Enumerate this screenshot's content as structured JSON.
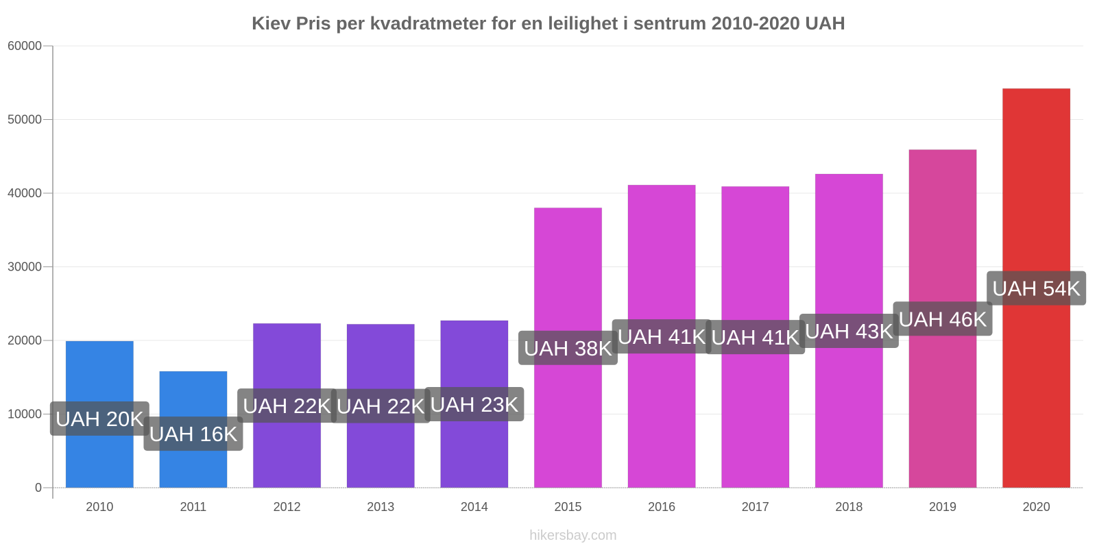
{
  "chart_data": {
    "type": "bar",
    "title": "Kiev Pris per kvadratmeter for en leilighet i sentrum 2010-2020 UAH",
    "xlabel": "",
    "ylabel": "",
    "ylim": [
      0,
      60000
    ],
    "yticks": [
      "0",
      "10000",
      "20000",
      "30000",
      "40000",
      "50000",
      "60000"
    ],
    "grid": true,
    "categories": [
      "2010",
      "2011",
      "2012",
      "2013",
      "2014",
      "2015",
      "2016",
      "2017",
      "2018",
      "2019",
      "2020"
    ],
    "values": [
      19900,
      15800,
      22300,
      22200,
      22700,
      38000,
      41100,
      40900,
      42600,
      45900,
      54200
    ],
    "data_labels": [
      "UAH 20K",
      "UAH 16K",
      "UAH 22K",
      "UAH 22K",
      "UAH 23K",
      "UAH 38K",
      "UAH 41K",
      "UAH 41K",
      "UAH 43K",
      "UAH 46K",
      "UAH 54K"
    ],
    "colors": [
      "#3584e4",
      "#3584e4",
      "#834ad9",
      "#834ad9",
      "#834ad9",
      "#d647d6",
      "#d647d6",
      "#d647d6",
      "#d647d6",
      "#d6479c",
      "#e03636"
    ],
    "label_box_color": "#555555"
  },
  "footer": "hikersbay.com"
}
